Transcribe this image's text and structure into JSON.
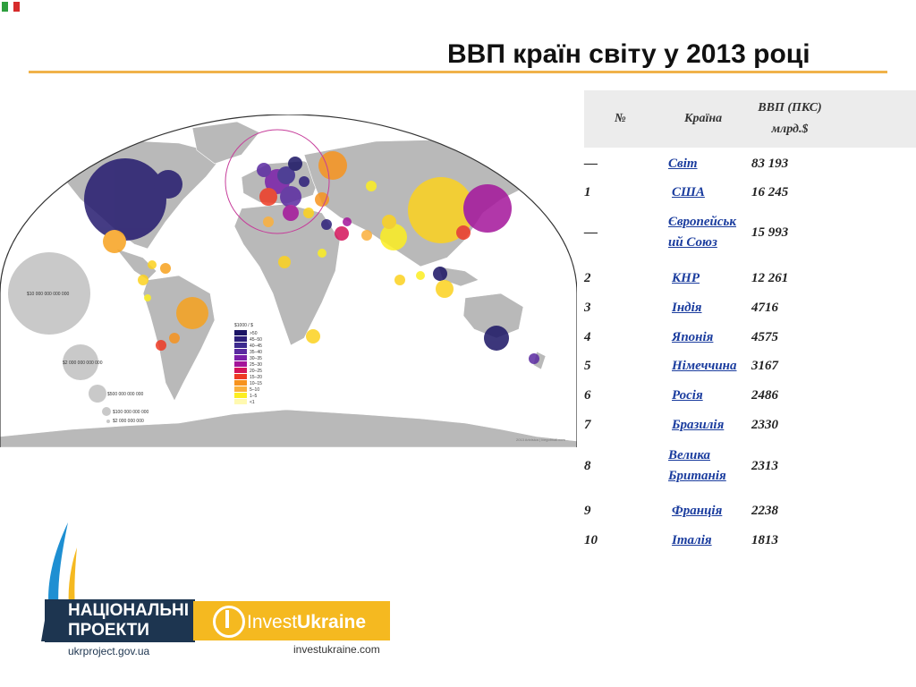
{
  "title": "ВВП країн світу у 2013 році",
  "flag_colors": [
    "#2e9e3e",
    "#ffffff",
    "#d62b2b"
  ],
  "table": {
    "headers": {
      "num": "№",
      "country": "Країна",
      "gdp_line1": "ВВП (ПКС)",
      "gdp_line2": "млрд.$"
    },
    "rows": [
      {
        "num": "—",
        "country": "Світ",
        "gdp": "83 193"
      },
      {
        "num": "1",
        "country": "США",
        "gdp": "16 245"
      },
      {
        "num": "—",
        "country_line1": "Європейськ",
        "country_line2": "ий Союз",
        "gdp": "15 993"
      },
      {
        "num": "2",
        "country": "КНР",
        "gdp": "12 261"
      },
      {
        "num": "3",
        "country": "Індія",
        "gdp": "4716"
      },
      {
        "num": "4",
        "country": "Японія",
        "gdp": "4575"
      },
      {
        "num": "5",
        "country": "Німеччина",
        "gdp": "3167"
      },
      {
        "num": "6",
        "country": "Росія",
        "gdp": "2486"
      },
      {
        "num": "7",
        "country": "Бразилія",
        "gdp": "2330"
      },
      {
        "num": "8",
        "country_line1": "Велика",
        "country_line2": "Британія",
        "gdp": "2313"
      },
      {
        "num": "9",
        "country": "Франція",
        "gdp": "2238"
      },
      {
        "num": "10",
        "country": "Італія",
        "gdp": "1813"
      }
    ]
  },
  "map": {
    "size_legend": [
      "$10 000 000 000 000",
      "$2 000 000 000 000",
      "$500 000 000 000",
      "$100 000 000 000",
      "$2 000 000 000"
    ],
    "color_legend_title": "$1000 / $",
    "color_legend": [
      ">50",
      "45–50",
      "40–45",
      "35–40",
      "30–35",
      "25–30",
      "20–25",
      "15–20",
      "10–15",
      "5–10",
      "1–5",
      "<1"
    ],
    "color_legend_colors": [
      "#1b1464",
      "#2c1e7a",
      "#3d2b8f",
      "#5a2aa0",
      "#7a1fa8",
      "#a4149a",
      "#d4145a",
      "#ee3a24",
      "#f7931e",
      "#fbb03b",
      "#fcee21",
      "#fff9b0"
    ],
    "credit": "2013 Artvisica | ivegotmail.com"
  },
  "logos": {
    "national_projects_line1": "НАЦІОНАЛЬНІ",
    "national_projects_line2": "ПРОЕКТИ",
    "national_projects_url": "ukrproject.gov.ua",
    "invest_prefix": "Invest",
    "invest_suffix": "Ukraine",
    "invest_url": "investukraine.com"
  }
}
